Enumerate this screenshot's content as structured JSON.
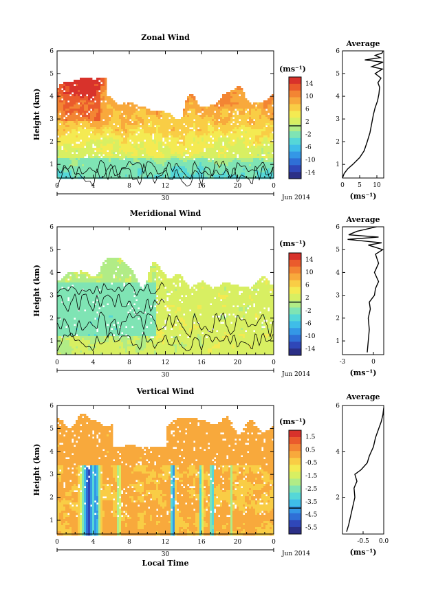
{
  "colorbar_colors": [
    "#2b2f86",
    "#2f47b8",
    "#2f6fd6",
    "#3497e6",
    "#3fbde8",
    "#55d7d8",
    "#7fe4b4",
    "#b1ec86",
    "#d8ef62",
    "#f4ea52",
    "#f9cd45",
    "#f8a93c",
    "#f38533",
    "#ea5b2c",
    "#d8322b"
  ],
  "chart_data": [
    {
      "type": "heatmap",
      "title": "Zonal Wind",
      "ylabel": "Height (km)",
      "ylim": [
        0.4,
        6
      ],
      "yticks": [
        "1",
        "2",
        "3",
        "4",
        "5",
        "6"
      ],
      "xlim": [
        0,
        24
      ],
      "xticks": [
        "0",
        "4",
        "8",
        "12",
        "16",
        "20",
        "0"
      ],
      "date_label": "30",
      "month_label": "Jun 2014",
      "colorbar_unit": "(ms⁻¹)",
      "colorbar_ticks": [
        "14",
        "10",
        "6",
        "2",
        "-2",
        "-6",
        "-10",
        "-14"
      ],
      "colorbar_range": [
        -16,
        16
      ],
      "zero_contour": true,
      "zero_line_level": 0.48,
      "profile": {
        "title": "Average",
        "xlim": [
          0,
          12
        ],
        "xticks": [
          "0",
          "5",
          "10"
        ],
        "xlabel": "(ms⁻¹)",
        "ylim": [
          0.4,
          6
        ],
        "yticks": [
          "1",
          "2",
          "3",
          "4",
          "5",
          "6"
        ],
        "points": [
          [
            0,
            0.4
          ],
          [
            0.5,
            0.6
          ],
          [
            1.5,
            0.8
          ],
          [
            3,
            1.0
          ],
          [
            5,
            1.3
          ],
          [
            6.3,
            1.6
          ],
          [
            7.2,
            2.0
          ],
          [
            8,
            2.4
          ],
          [
            8.5,
            2.8
          ],
          [
            9,
            3.2
          ],
          [
            9.5,
            3.5
          ],
          [
            10.2,
            3.8
          ],
          [
            10.6,
            4.1
          ],
          [
            10.8,
            4.4
          ],
          [
            10.3,
            4.6
          ],
          [
            11.2,
            4.8
          ],
          [
            9.5,
            5.0
          ],
          [
            11.6,
            5.2
          ],
          [
            8.5,
            5.3
          ],
          [
            11.8,
            5.5
          ],
          [
            6.5,
            5.6
          ],
          [
            11,
            5.7
          ],
          [
            9.5,
            5.8
          ],
          [
            11.5,
            5.9
          ],
          [
            11.8,
            6.0
          ]
        ]
      }
    },
    {
      "type": "heatmap",
      "title": "Meridional Wind",
      "ylabel": "Height (km)",
      "ylim": [
        0.4,
        6
      ],
      "yticks": [
        "1",
        "2",
        "3",
        "4",
        "5",
        "6"
      ],
      "xlim": [
        0,
        24
      ],
      "xticks": [
        "0",
        "4",
        "8",
        "12",
        "16",
        "20",
        "0"
      ],
      "date_label": "30",
      "month_label": "Jun 2014",
      "colorbar_unit": "(ms⁻¹)",
      "colorbar_ticks": [
        "14",
        "10",
        "6",
        "2",
        "-2",
        "-6",
        "-10",
        "-14"
      ],
      "colorbar_range": [
        -16,
        16
      ],
      "zero_contour": true,
      "zero_line_level": 0.48,
      "profile": {
        "title": "Average",
        "xlim": [
          -3,
          1
        ],
        "xticks": [
          "-3",
          "0"
        ],
        "xlabel": "(ms⁻¹)",
        "ylim": [
          0.4,
          6
        ],
        "yticks": [
          "1",
          "2",
          "3",
          "4",
          "5",
          "6"
        ],
        "points": [
          [
            -0.6,
            0.5
          ],
          [
            -0.5,
            1.0
          ],
          [
            -0.4,
            1.5
          ],
          [
            -0.5,
            2.0
          ],
          [
            -0.3,
            2.4
          ],
          [
            -0.4,
            2.7
          ],
          [
            0.1,
            3.0
          ],
          [
            0.2,
            3.3
          ],
          [
            0.5,
            3.6
          ],
          [
            0.1,
            4.0
          ],
          [
            0.5,
            4.4
          ],
          [
            0.2,
            4.8
          ],
          [
            0.9,
            5.0
          ],
          [
            -0.5,
            5.2
          ],
          [
            0.8,
            5.3
          ],
          [
            -2.5,
            5.45
          ],
          [
            0.5,
            5.55
          ],
          [
            -2.4,
            5.65
          ],
          [
            -1.6,
            5.8
          ],
          [
            0.3,
            6.0
          ]
        ]
      }
    },
    {
      "type": "heatmap",
      "title": "Vertical Wind",
      "ylabel": "Height (km)",
      "ylim": [
        0.4,
        6
      ],
      "yticks": [
        "1",
        "2",
        "3",
        "4",
        "5",
        "6"
      ],
      "xlim": [
        0,
        24
      ],
      "xticks": [
        "0",
        "4",
        "8",
        "12",
        "16",
        "20",
        "0"
      ],
      "date_label": "30",
      "month_label": "Jun 2014",
      "xlabel": "Local Time",
      "colorbar_unit": "(ms⁻¹)",
      "colorbar_ticks": [
        "1.5",
        "0.5",
        "-0.5",
        "-1.5",
        "-2.5",
        "-3.5",
        "-4.5",
        "-5.5"
      ],
      "colorbar_range": [
        -6,
        2
      ],
      "zero_contour": false,
      "zero_line_level": 0.75,
      "profile": {
        "title": "Average",
        "xlim": [
          -1,
          0
        ],
        "xticks": [
          "-0.5",
          "0.0"
        ],
        "xlabel": "(ms⁻¹)",
        "ylim": [
          0.4,
          6
        ],
        "yticks": [
          "2",
          "4",
          "6"
        ],
        "points": [
          [
            -0.9,
            0.5
          ],
          [
            -0.85,
            0.8
          ],
          [
            -0.8,
            1.2
          ],
          [
            -0.75,
            1.6
          ],
          [
            -0.7,
            2.0
          ],
          [
            -0.72,
            2.4
          ],
          [
            -0.65,
            2.7
          ],
          [
            -0.7,
            3.0
          ],
          [
            -0.55,
            3.2
          ],
          [
            -0.4,
            3.5
          ],
          [
            -0.35,
            3.8
          ],
          [
            -0.25,
            4.2
          ],
          [
            -0.2,
            4.6
          ],
          [
            -0.12,
            5.0
          ],
          [
            -0.06,
            5.3
          ],
          [
            -0.02,
            5.6
          ],
          [
            0.0,
            5.9
          ]
        ]
      }
    }
  ]
}
